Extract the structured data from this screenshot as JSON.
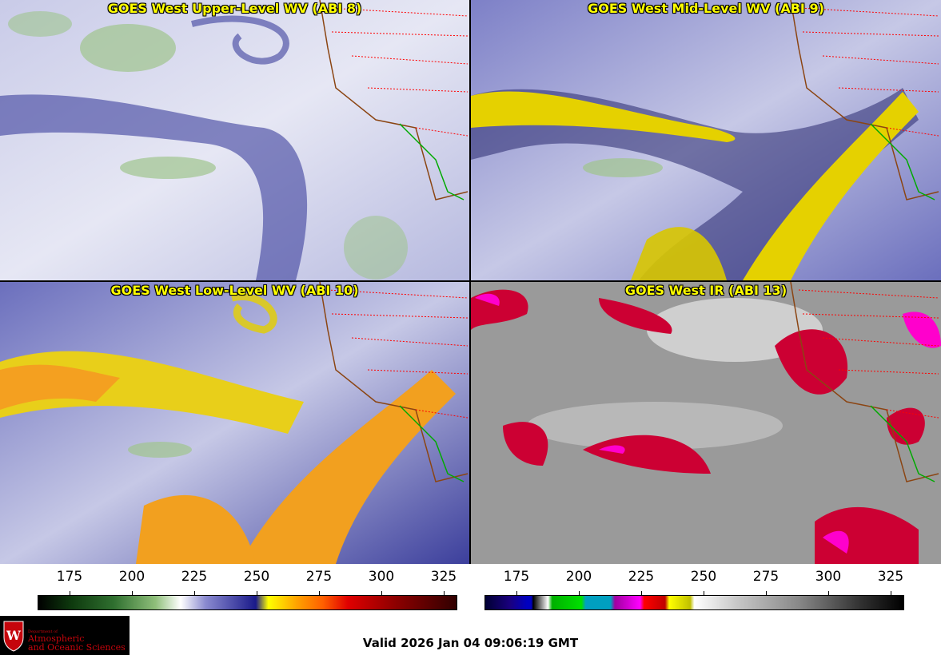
{
  "panels": [
    {
      "title": "GOES West Upper-Level WV (ABI 8)"
    },
    {
      "title": "GOES West Mid-Level WV (ABI 9)"
    },
    {
      "title": "GOES West Low-Level WV (ABI 10)"
    },
    {
      "title": "GOES West IR (ABI 13)"
    }
  ],
  "colorbars": {
    "wv": {
      "ticks": [
        "175",
        "200",
        "225",
        "250",
        "275",
        "300",
        "325"
      ]
    },
    "ir": {
      "ticks": [
        "175",
        "200",
        "225",
        "250",
        "275",
        "300",
        "325"
      ]
    }
  },
  "logo": {
    "dept_line": "Department of",
    "name_line1": "Atmospheric",
    "name_line2": "and Oceanic Sciences"
  },
  "valid_time": "Valid 2026 Jan 04 09:06:19 GMT",
  "colors": {
    "title_text": "#ffff00",
    "border_state": "#ff0000",
    "coastline": "#8b4513",
    "mexico_border": "#00aa00",
    "uw_red": "#c5050c"
  }
}
